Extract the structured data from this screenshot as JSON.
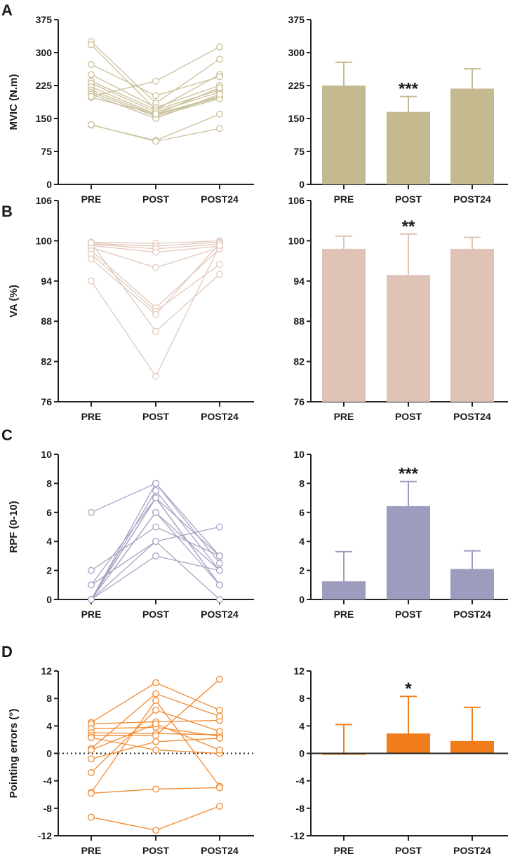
{
  "chart_data": [
    {
      "panel": "A",
      "type": "line",
      "subtype": "individual",
      "ylabel": "MVIC (N.m)",
      "categories": [
        "PRE",
        "POST",
        "POST24"
      ],
      "ylim": [
        0,
        375
      ],
      "yticks": [
        0,
        75,
        150,
        225,
        300,
        375
      ],
      "color": "#c5b990",
      "series": [
        [
          325,
          185,
          285
        ],
        [
          318,
          170,
          250
        ],
        [
          273,
          202,
          245
        ],
        [
          250,
          175,
          225
        ],
        [
          235,
          170,
          215
        ],
        [
          230,
          165,
          210
        ],
        [
          222,
          160,
          200
        ],
        [
          215,
          158,
          198
        ],
        [
          210,
          155,
          195
        ],
        [
          205,
          150,
          205
        ],
        [
          198,
          160,
          220
        ],
        [
          200,
          235,
          313
        ],
        [
          135,
          100,
          160
        ],
        [
          136,
          98,
          127
        ]
      ]
    },
    {
      "panel": "A",
      "type": "bar",
      "ylabel": "",
      "categories": [
        "PRE",
        "POST",
        "POST24"
      ],
      "ylim": [
        0,
        375
      ],
      "yticks": [
        0,
        75,
        150,
        225,
        300,
        375
      ],
      "color": "#c5b990",
      "values": [
        225,
        165,
        218
      ],
      "sd": [
        53,
        35,
        45
      ],
      "significance": [
        "",
        "***",
        ""
      ]
    },
    {
      "panel": "B",
      "type": "line",
      "subtype": "individual",
      "ylabel": "VA (%)",
      "categories": [
        "PRE",
        "POST",
        "POST24"
      ],
      "ylim": [
        76,
        106
      ],
      "yticks": [
        76,
        82,
        88,
        94,
        100,
        106
      ],
      "color": "#dfc3b6",
      "series": [
        [
          99.8,
          99.6,
          100
        ],
        [
          99.6,
          99.2,
          99.8
        ],
        [
          99.5,
          98.8,
          99.5
        ],
        [
          99.3,
          98.3,
          99.2
        ],
        [
          99,
          96,
          99
        ],
        [
          98.5,
          90,
          98.8
        ],
        [
          98,
          89.5,
          96.5
        ],
        [
          97.3,
          89,
          99.6
        ],
        [
          99.7,
          86.5,
          95
        ],
        [
          94,
          79.8,
          99.3
        ]
      ]
    },
    {
      "panel": "B",
      "type": "bar",
      "ylabel": "",
      "categories": [
        "PRE",
        "POST",
        "POST24"
      ],
      "ylim": [
        76,
        106
      ],
      "yticks": [
        76,
        82,
        88,
        94,
        100,
        106
      ],
      "color": "#dfc3b6",
      "values": [
        98.8,
        94.9,
        98.8
      ],
      "sd": [
        1.9,
        6.1,
        1.7
      ],
      "significance": [
        "",
        "**",
        ""
      ]
    },
    {
      "panel": "C",
      "type": "line",
      "subtype": "individual",
      "ylabel": "RPF (0-10)",
      "categories": [
        "PRE",
        "POST",
        "POST24"
      ],
      "ylim": [
        0,
        10
      ],
      "yticks": [
        0,
        2,
        4,
        6,
        8,
        10
      ],
      "color": "#9c9cbf",
      "series": [
        [
          6,
          8,
          3
        ],
        [
          2,
          5,
          3
        ],
        [
          1,
          7,
          3
        ],
        [
          1,
          4,
          5
        ],
        [
          0,
          8,
          2.5
        ],
        [
          0,
          7.5,
          2
        ],
        [
          0,
          7,
          1
        ],
        [
          0,
          7,
          1
        ],
        [
          0,
          6,
          1
        ],
        [
          0,
          6,
          2
        ],
        [
          0,
          4,
          0
        ],
        [
          0,
          3,
          2
        ],
        [
          0,
          7,
          1
        ]
      ]
    },
    {
      "panel": "C",
      "type": "bar",
      "ylabel": "",
      "categories": [
        "PRE",
        "POST",
        "POST24"
      ],
      "ylim": [
        0,
        10
      ],
      "yticks": [
        0,
        2,
        4,
        6,
        8,
        10
      ],
      "color": "#9c9cbf",
      "values": [
        1.25,
        6.43,
        2.1
      ],
      "sd": [
        2.05,
        1.7,
        1.25
      ],
      "significance": [
        "",
        "***",
        ""
      ]
    },
    {
      "panel": "D",
      "type": "line",
      "subtype": "individual",
      "ylabel": "Pointing errors (°)",
      "categories": [
        "PRE",
        "POST",
        "POST24"
      ],
      "ylim": [
        -12,
        12
      ],
      "yticks": [
        -12,
        -8,
        -4,
        0,
        4,
        8,
        12
      ],
      "color": "#f07d1a",
      "reference_line": 0,
      "series": [
        [
          4.5,
          10.3,
          6.3
        ],
        [
          4.3,
          4.6,
          4.8
        ],
        [
          3.6,
          3.8,
          2.5
        ],
        [
          3.0,
          2.9,
          2.7
        ],
        [
          2.6,
          2.6,
          10.8
        ],
        [
          2.3,
          0.5,
          0
        ],
        [
          0.7,
          8.7,
          5.4
        ],
        [
          0.5,
          4.3,
          0.5
        ],
        [
          -0.8,
          1.7,
          2.2
        ],
        [
          -2.8,
          6.3,
          3.2
        ],
        [
          -5.7,
          7.7,
          -4.8
        ],
        [
          -5.8,
          -5.2,
          -5.0
        ],
        [
          -9.3,
          -11.2,
          -7.7
        ]
      ]
    },
    {
      "panel": "D",
      "type": "bar",
      "ylabel": "",
      "categories": [
        "PRE",
        "POST",
        "POST24"
      ],
      "ylim": [
        -12,
        12
      ],
      "yticks": [
        -12,
        -8,
        -4,
        0,
        4,
        8,
        12
      ],
      "color": "#f07d1a",
      "values": [
        -0.2,
        2.9,
        1.8
      ],
      "sd": [
        4.4,
        5.4,
        4.9
      ],
      "significance": [
        "",
        "*",
        ""
      ],
      "reference_line": 0
    }
  ]
}
